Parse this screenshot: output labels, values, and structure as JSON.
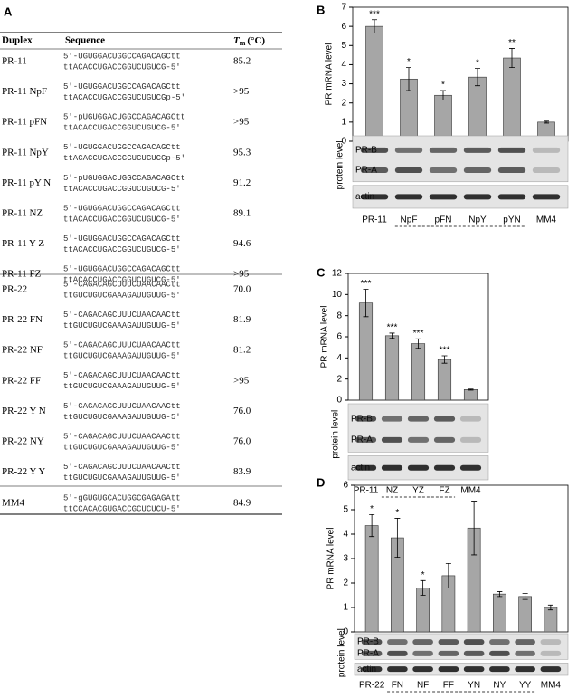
{
  "table": {
    "panel": "A",
    "header": {
      "duplex": "Duplex",
      "sequence": "Sequence",
      "tm_symbol": "T",
      "tm_sub": "m",
      "tm_unit": "(°C)"
    },
    "rows": [
      {
        "duplex": "PR-11",
        "strands": [
          "5'-UGUGGACUGGCCAGACAGCtt",
          "ttACACCUGACCGGUCUGUCG-5'"
        ],
        "tm": "85.2"
      },
      {
        "duplex": "PR-11 NpF",
        "strands": [
          "5'-UGUGGACUGGCCAGACAGCtt",
          "ttACACCUGACCGGUCUGUCGp-5'"
        ],
        "tm": ">95"
      },
      {
        "duplex": "PR-11 pFN",
        "strands": [
          "5'-pUGUGGACUGGCCAGACAGCtt",
          "ttACACCUGACCGGUCUGUCG-5'"
        ],
        "tm": ">95"
      },
      {
        "duplex": "PR-11 NpY",
        "strands": [
          "5'-UGUGGACUGGCCAGACAGCtt",
          "ttACACCUGACCGGUCUGUCGp-5'"
        ],
        "tm": "95.3"
      },
      {
        "duplex": "PR-11 pY N",
        "strands": [
          "5'-pUGUGGACUGGCCAGACAGCtt",
          "ttACACCUGACCGGUCUGUCG-5'"
        ],
        "tm": "91.2"
      },
      {
        "duplex": "PR-11 NZ",
        "strands": [
          "5'-UGUGGACUGGCCAGACAGCtt",
          "ttACACCUGACCGGUCUGUCG-5'"
        ],
        "tm": "89.1"
      },
      {
        "duplex": "PR-11 Y Z",
        "strands": [
          "5'-UGUGGACUGGCCAGACAGCtt",
          "ttACACCUGACCGGUCUGUCG-5'"
        ],
        "tm": "94.6"
      },
      {
        "duplex": "PR-11 FZ",
        "strands": [
          "5'-UGUGGACUGGCCAGACAGCtt",
          "ttACACCUGACCGGUCUGUCG-5'"
        ],
        "tm": ">95"
      },
      {
        "duplex": "PR-22",
        "strands": [
          "5'-CAGACAGCUUUCUAACAACtt",
          "ttGUCUGUCGAAAGAUUGUUG-5'"
        ],
        "tm": "70.0"
      },
      {
        "duplex": "PR-22 FN",
        "strands": [
          "5'-CAGACAGCUUUCUAACAACtt",
          "ttGUCUGUCGAAAGAUUGUUG-5'"
        ],
        "tm": "81.9"
      },
      {
        "duplex": "PR-22 NF",
        "strands": [
          "5'-CAGACAGCUUUCUAACAACtt",
          "ttGUCUGUCGAAAGAUUGUUG-5'"
        ],
        "tm": "81.2"
      },
      {
        "duplex": "PR-22 FF",
        "strands": [
          "5'-CAGACAGCUUUCUAACAACtt",
          "ttGUCUGUCGAAAGAUUGUUG-5'"
        ],
        "tm": ">95"
      },
      {
        "duplex": "PR-22 Y N",
        "strands": [
          "5'-CAGACAGCUUUCUAACAACtt",
          "ttGUCUGUCGAAAGAUUGUUG-5'"
        ],
        "tm": "76.0"
      },
      {
        "duplex": "PR-22 NY",
        "strands": [
          "5'-CAGACAGCUUUCUAACAACtt",
          "ttGUCUGUCGAAAGAUUGUUG-5'"
        ],
        "tm": "76.0"
      },
      {
        "duplex": "PR-22 Y Y",
        "strands": [
          "5'-CAGACAGCUUUCUAACAACtt",
          "ttGUCUGUCGAAAGAUUGUUG-5'"
        ],
        "tm": "83.9"
      },
      {
        "duplex": "MM4",
        "strands": [
          "5'-gGUGUGCACUGGCGAGAGAtt",
          "ttCCACACGUGACCGCUCUCU-5'"
        ],
        "tm": "84.9"
      }
    ]
  },
  "chart_data": [
    {
      "type": "bar",
      "panel": "B",
      "ylabel": "PR mRNA level",
      "color": "#a6a6a6",
      "categories": [
        "PR-11",
        "NpF",
        "pFN",
        "NpY",
        "pYN",
        "MM4"
      ],
      "values": [
        6.0,
        3.25,
        2.4,
        3.35,
        4.35,
        1.0
      ],
      "errors": [
        0.35,
        0.6,
        0.25,
        0.45,
        0.5,
        0.05
      ],
      "annotations": [
        "***",
        "*",
        "*",
        "*",
        "**",
        null
      ],
      "ylim": [
        0,
        7
      ],
      "yticks": [
        0,
        1,
        2,
        3,
        4,
        5,
        6,
        7
      ],
      "blot_labels": [
        "PR-B",
        "PR-A",
        "actin"
      ],
      "blot_axis_label": "protein level"
    },
    {
      "type": "bar",
      "panel": "C",
      "ylabel": "PR mRNA level",
      "color": "#a6a6a6",
      "categories": [
        "PR-11",
        "NZ",
        "YZ",
        "FZ",
        "MM4"
      ],
      "values": [
        9.2,
        6.1,
        5.35,
        3.85,
        1.0
      ],
      "errors": [
        1.3,
        0.25,
        0.45,
        0.35,
        0.05
      ],
      "annotations": [
        "***",
        "***",
        "***",
        "***",
        null
      ],
      "ylim": [
        0,
        12
      ],
      "yticks": [
        0,
        2,
        4,
        6,
        8,
        10,
        12
      ],
      "blot_labels": [
        "PR-B",
        "PR-A",
        "actin"
      ],
      "blot_axis_label": "protein level"
    },
    {
      "type": "bar",
      "panel": "D",
      "ylabel": "PR mRNA level",
      "color": "#a6a6a6",
      "categories": [
        "PR-22",
        "FN",
        "NF",
        "FF",
        "YN",
        "NY",
        "YY",
        "MM4"
      ],
      "values": [
        4.35,
        3.85,
        1.8,
        2.3,
        4.25,
        1.55,
        1.45,
        1.0
      ],
      "errors": [
        0.45,
        0.8,
        0.3,
        0.5,
        1.1,
        0.1,
        0.12,
        0.1
      ],
      "annotations": [
        "*",
        "*",
        "*",
        null,
        null,
        null,
        null,
        null
      ],
      "ylim": [
        0,
        6
      ],
      "yticks": [
        0,
        1,
        2,
        3,
        4,
        5,
        6
      ],
      "blot_labels": [
        "PR-B",
        "PR-A",
        "actin"
      ],
      "blot_axis_label": "protein level"
    }
  ]
}
